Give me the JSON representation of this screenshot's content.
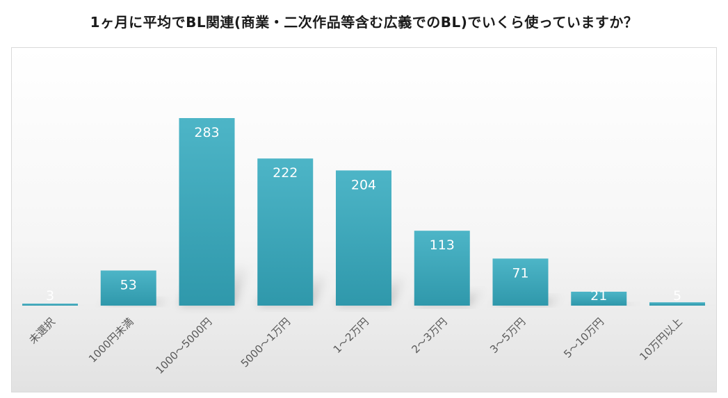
{
  "title": "1ヶ月に平均でBL関連(商業・二次作品等含む広義でのBL)でいくら使っていますか？",
  "chart_data": {
    "type": "bar",
    "title": "1ヶ月に平均でBL関連(商業・二次作品等含む広義でのBL)でいくら使っていますか？",
    "categories": [
      "未選択",
      "1000円未満",
      "1000～5000円",
      "5000～1万円",
      "1～2万円",
      "2～3万円",
      "3～5万円",
      "5～10万円",
      "10万円以上"
    ],
    "values": [
      3,
      53,
      283,
      222,
      204,
      113,
      71,
      21,
      5
    ],
    "data_labels": [
      "3",
      "53",
      "283",
      "222",
      "204",
      "113",
      "71",
      "21",
      "5"
    ],
    "xlabel": "",
    "ylabel": "",
    "ylim": [
      0,
      300
    ],
    "grid": false,
    "legend": "none",
    "colors": {
      "bar_top": "#4db5c7",
      "bar_bottom": "#2f98ab",
      "label": "#ffffff",
      "category_text": "#595959"
    }
  }
}
